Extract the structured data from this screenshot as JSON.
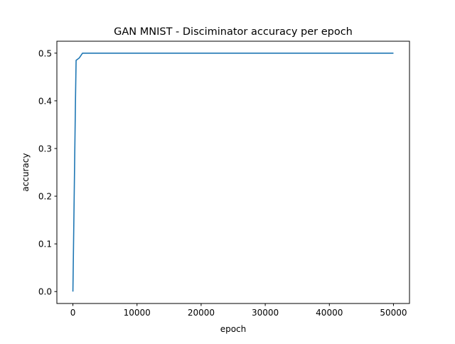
{
  "chart_data": {
    "type": "line",
    "title": "GAN MNIST - Disciminator accuracy per epoch",
    "xlabel": "epoch",
    "ylabel": "accuracy",
    "xlim": [
      -2500,
      52500
    ],
    "ylim": [
      -0.025,
      0.525
    ],
    "xticks": [
      0,
      10000,
      20000,
      30000,
      40000,
      50000
    ],
    "yticks": [
      0.0,
      0.1,
      0.2,
      0.3,
      0.4,
      0.5
    ],
    "xtick_labels": [
      "0",
      "10000",
      "20000",
      "30000",
      "40000",
      "50000"
    ],
    "ytick_labels": [
      "0.0",
      "0.1",
      "0.2",
      "0.3",
      "0.4",
      "0.5"
    ],
    "grid": false,
    "legend": "none",
    "series": [
      {
        "color": "#1f77b4",
        "x": [
          0,
          400,
          500,
          1000,
          1500,
          2000,
          5000,
          10000,
          20000,
          30000,
          40000,
          50000
        ],
        "y": [
          0.0,
          0.4,
          0.485,
          0.49,
          0.5,
          0.5,
          0.5,
          0.5,
          0.5,
          0.5,
          0.5,
          0.5
        ]
      }
    ]
  }
}
